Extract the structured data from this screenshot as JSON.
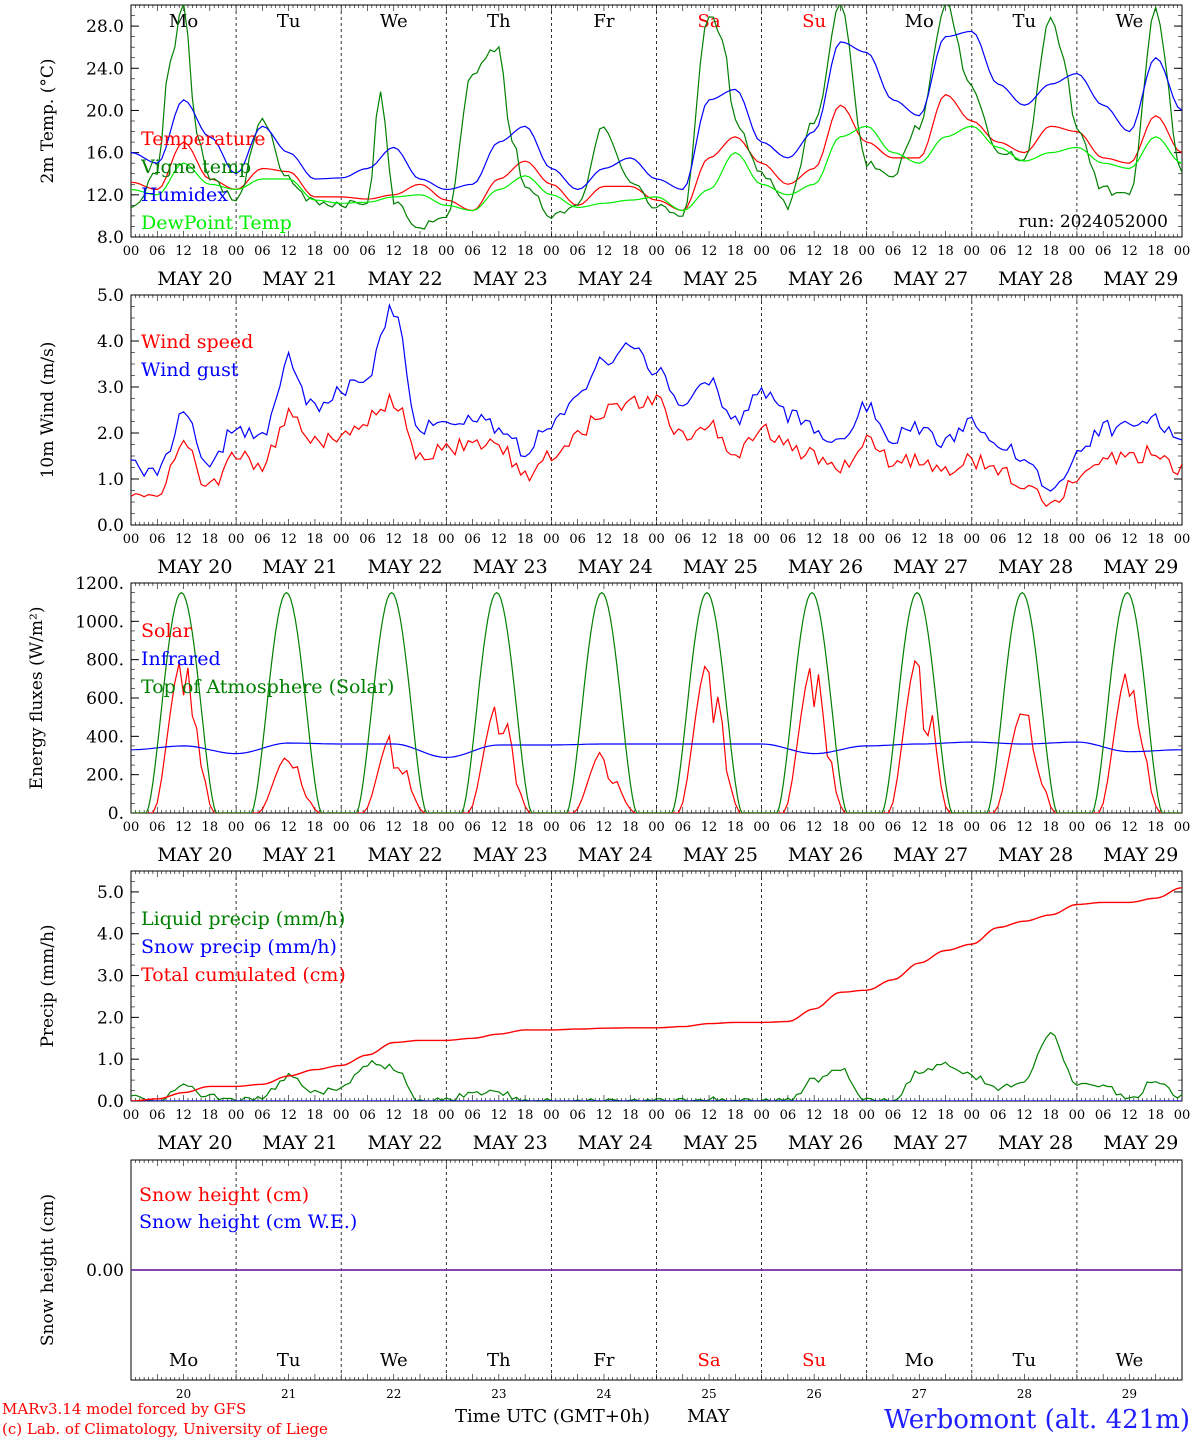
{
  "days": [
    "Mo",
    "Tu",
    "We",
    "Th",
    "Fr",
    "Sa",
    "Su",
    "Mo",
    "Tu",
    "We"
  ],
  "weekend_days": [
    5,
    6
  ],
  "dates": [
    "MAY 20",
    "MAY 21",
    "MAY 22",
    "MAY 23",
    "MAY 24",
    "MAY 25",
    "MAY 26",
    "MAY 27",
    "MAY 28",
    "MAY 29"
  ],
  "date_nums": [
    "20",
    "21",
    "22",
    "23",
    "24",
    "25",
    "26",
    "27",
    "28",
    "29"
  ],
  "hour_labels": [
    "00",
    "06",
    "12",
    "18"
  ],
  "last_hour_label": "00",
  "colors": {
    "red": "#ff0000",
    "green": "#008000",
    "blue": "#0000ff",
    "lightgreen": "#00ee00",
    "purple": "#7030a0",
    "weekend": "#ff0000",
    "site": "#2020ff"
  },
  "footer": {
    "left1": "MARv3.14 model forced by GFS",
    "left2": "(c) Lab. of Climatology, University of Liege",
    "center": "Time UTC (GMT+0h)",
    "month": "MAY",
    "site": "Werbomont (alt. 421m)"
  },
  "chart_data": [
    {
      "type": "line",
      "ylabel": "2m Temp. (°C)",
      "ylim": [
        8,
        30
      ],
      "yticks": [
        "8.0",
        "12.0",
        "16.0",
        "20.0",
        "24.0",
        "28.0"
      ],
      "ytick_values": [
        8,
        12,
        16,
        20,
        24,
        28
      ],
      "annotation": "run: 2024052000",
      "x_unit": "hours since 2024-05-20 00 UTC",
      "series": [
        {
          "name": "Temperature",
          "color": "red",
          "x": [
            0,
            6,
            12,
            18,
            24,
            30,
            36,
            42,
            48,
            54,
            60,
            66,
            72,
            78,
            84,
            90,
            96,
            102,
            108,
            114,
            120,
            126,
            132,
            138,
            144,
            150,
            156,
            162,
            168,
            174,
            180,
            186,
            192,
            198,
            204,
            210,
            216,
            222,
            228,
            234,
            240
          ],
          "y": [
            13.2,
            12.5,
            17.0,
            13.5,
            12.5,
            14.5,
            14.2,
            11.8,
            11.8,
            11.6,
            12.0,
            13.0,
            11.5,
            10.5,
            13.5,
            15.2,
            13.0,
            11.0,
            12.8,
            12.8,
            11.5,
            10.5,
            15.5,
            17.5,
            15.0,
            13.0,
            14.5,
            20.5,
            17.0,
            15.5,
            15.5,
            21.5,
            19.0,
            17.0,
            16.0,
            18.5,
            18.0,
            15.5,
            15.0,
            19.5,
            16.0
          ]
        },
        {
          "name": "Vigne temp",
          "color": "green",
          "x": [
            0,
            6,
            9,
            12,
            15,
            18,
            24,
            30,
            36,
            42,
            48,
            54,
            57,
            60,
            66,
            72,
            78,
            84,
            87,
            90,
            96,
            102,
            108,
            114,
            120,
            126,
            132,
            135,
            138,
            144,
            150,
            156,
            162,
            168,
            174,
            180,
            186,
            192,
            198,
            204,
            210,
            213,
            216,
            222,
            228,
            234,
            240
          ],
          "y": [
            10.5,
            14.0,
            25.0,
            30.0,
            18.0,
            13.5,
            11.5,
            19.0,
            13.5,
            11.2,
            11.0,
            11.5,
            21.5,
            11.5,
            9.0,
            10.0,
            23.5,
            26.0,
            17.0,
            13.0,
            10.0,
            11.0,
            18.5,
            13.0,
            11.0,
            10.0,
            29.0,
            27.0,
            19.0,
            14.0,
            11.0,
            19.0,
            30.0,
            15.0,
            14.0,
            18.5,
            30.0,
            22.0,
            16.0,
            15.5,
            28.5,
            25.0,
            18.0,
            12.5,
            11.8,
            29.5,
            14.0
          ]
        },
        {
          "name": "Humidex",
          "color": "blue",
          "x": [
            0,
            6,
            12,
            18,
            24,
            30,
            36,
            42,
            48,
            54,
            60,
            66,
            72,
            78,
            84,
            90,
            96,
            102,
            108,
            114,
            120,
            126,
            132,
            138,
            144,
            150,
            156,
            162,
            168,
            174,
            180,
            186,
            192,
            198,
            204,
            210,
            216,
            222,
            228,
            234,
            240
          ],
          "y": [
            16.0,
            15.0,
            21.0,
            17.5,
            14.0,
            18.5,
            16.0,
            13.5,
            13.6,
            14.5,
            16.5,
            13.5,
            12.5,
            13.0,
            17.0,
            18.5,
            14.5,
            12.5,
            14.5,
            15.5,
            13.5,
            12.5,
            21.0,
            22.0,
            17.0,
            15.5,
            18.0,
            26.5,
            25.5,
            21.0,
            19.5,
            27.0,
            27.5,
            22.5,
            20.5,
            22.5,
            23.5,
            20.5,
            18.0,
            25.0,
            20.0
          ]
        },
        {
          "name": "DewPoint Temp",
          "color": "lightgreen",
          "x": [
            0,
            6,
            12,
            18,
            24,
            30,
            36,
            42,
            48,
            54,
            60,
            66,
            72,
            78,
            84,
            90,
            96,
            102,
            108,
            114,
            120,
            126,
            132,
            138,
            144,
            150,
            156,
            162,
            168,
            174,
            180,
            186,
            192,
            198,
            204,
            210,
            216,
            222,
            228,
            234,
            240
          ],
          "y": [
            12.5,
            12.0,
            15.0,
            13.0,
            12.5,
            13.5,
            13.5,
            11.5,
            11.2,
            11.3,
            11.8,
            12.0,
            11.0,
            10.5,
            12.5,
            13.8,
            12.0,
            10.8,
            11.2,
            11.5,
            11.8,
            10.5,
            12.5,
            16.0,
            13.0,
            12.0,
            13.0,
            17.5,
            18.5,
            16.0,
            15.0,
            17.5,
            18.5,
            16.5,
            15.2,
            16.0,
            16.5,
            15.0,
            14.5,
            17.5,
            15.0
          ]
        }
      ]
    },
    {
      "type": "line",
      "ylabel": "10m Wind (m/s)",
      "ylim": [
        0,
        5
      ],
      "yticks": [
        "0.0",
        "1.0",
        "2.0",
        "3.0",
        "4.0",
        "5.0"
      ],
      "ytick_values": [
        0,
        1,
        2,
        3,
        4,
        5
      ],
      "x_unit": "hours since 2024-05-20 00 UTC",
      "series": [
        {
          "name": "Wind speed",
          "color": "red",
          "x": [
            0,
            6,
            12,
            18,
            24,
            30,
            36,
            42,
            48,
            54,
            60,
            66,
            72,
            78,
            84,
            90,
            96,
            102,
            108,
            114,
            120,
            126,
            132,
            138,
            144,
            150,
            156,
            162,
            168,
            174,
            180,
            186,
            192,
            198,
            204,
            210,
            216,
            222,
            228,
            234,
            240
          ],
          "y": [
            0.8,
            0.7,
            1.7,
            0.8,
            1.5,
            1.3,
            2.4,
            1.8,
            1.9,
            2.3,
            2.7,
            1.5,
            1.6,
            1.8,
            1.7,
            1.1,
            1.5,
            2.0,
            2.5,
            2.7,
            2.7,
            1.9,
            2.2,
            1.6,
            2.1,
            1.7,
            1.5,
            1.3,
            1.8,
            1.4,
            1.4,
            1.2,
            1.4,
            1.2,
            0.9,
            0.4,
            1.0,
            1.5,
            1.4,
            1.6,
            1.2
          ]
        },
        {
          "name": "Wind gust",
          "color": "blue",
          "x": [
            0,
            6,
            12,
            18,
            24,
            30,
            36,
            42,
            48,
            54,
            60,
            66,
            72,
            78,
            84,
            90,
            96,
            102,
            108,
            114,
            120,
            126,
            132,
            138,
            144,
            150,
            156,
            162,
            168,
            174,
            180,
            186,
            192,
            198,
            204,
            210,
            216,
            222,
            228,
            234,
            240
          ],
          "y": [
            1.3,
            1.1,
            2.4,
            1.3,
            2.1,
            1.9,
            3.6,
            2.5,
            2.9,
            3.3,
            4.7,
            2.1,
            2.3,
            2.3,
            2.1,
            1.6,
            2.2,
            2.8,
            3.6,
            3.8,
            3.4,
            2.6,
            3.1,
            2.3,
            2.9,
            2.4,
            2.1,
            1.8,
            2.6,
            1.9,
            2.1,
            1.8,
            2.2,
            1.7,
            1.5,
            0.6,
            1.5,
            2.1,
            2.1,
            2.3,
            1.8
          ]
        }
      ]
    },
    {
      "type": "line",
      "ylabel": "Energy fluxes (W/m²)",
      "ylim": [
        0,
        1200
      ],
      "yticks": [
        "0.",
        "200.",
        "400.",
        "600.",
        "800.",
        "1000.",
        "1200."
      ],
      "ytick_values": [
        0,
        200,
        400,
        600,
        800,
        1000,
        1200
      ],
      "x_unit": "hours since 2024-05-20 00 UTC",
      "series": [
        {
          "name": "Solar",
          "color": "red",
          "daily_peaks": [
            820,
            300,
            420,
            580,
            330,
            800,
            790,
            830,
            540,
            760
          ]
        },
        {
          "name": "Infrared",
          "color": "blue",
          "x": [
            0,
            12,
            24,
            36,
            48,
            60,
            72,
            84,
            96,
            108,
            120,
            132,
            144,
            156,
            168,
            180,
            192,
            204,
            216,
            228,
            240
          ],
          "y": [
            330,
            350,
            310,
            365,
            360,
            360,
            290,
            355,
            355,
            360,
            360,
            360,
            360,
            310,
            350,
            360,
            370,
            360,
            370,
            320,
            330
          ]
        },
        {
          "name": "Top of Atmosphere (Solar)",
          "color": "green",
          "daily_peak": 1150
        }
      ]
    },
    {
      "type": "line",
      "ylabel": "Precip (mm/h)",
      "ylim": [
        0,
        5.5
      ],
      "yticks": [
        "0.0",
        "1.0",
        "2.0",
        "3.0",
        "4.0",
        "5.0"
      ],
      "ytick_values": [
        0,
        1,
        2,
        3,
        4,
        5
      ],
      "x_unit": "hours since 2024-05-20 00 UTC",
      "series": [
        {
          "name": "Liquid precip (mm/h)",
          "color": "green",
          "x": [
            0,
            6,
            12,
            18,
            24,
            30,
            36,
            42,
            48,
            54,
            60,
            66,
            72,
            78,
            84,
            90,
            96,
            102,
            108,
            114,
            120,
            126,
            132,
            138,
            144,
            150,
            156,
            162,
            168,
            174,
            180,
            186,
            192,
            198,
            204,
            210,
            216,
            222,
            228,
            234,
            240
          ],
          "y": [
            0.2,
            0.0,
            0.35,
            0.1,
            0.0,
            0.1,
            0.6,
            0.2,
            0.3,
            0.9,
            0.8,
            0.0,
            0.0,
            0.2,
            0.2,
            0.0,
            0.0,
            0.0,
            0.0,
            0.0,
            0.0,
            0.0,
            0.05,
            0.05,
            0.0,
            0.0,
            0.5,
            0.8,
            0.0,
            0.0,
            0.7,
            0.9,
            0.6,
            0.3,
            0.5,
            1.6,
            0.4,
            0.4,
            0.0,
            0.5,
            0.1
          ]
        },
        {
          "name": "Snow precip (mm/h)",
          "color": "blue",
          "x": [
            0,
            240
          ],
          "y": [
            0,
            0
          ]
        },
        {
          "name": "Total cumulated (cm)",
          "color": "red",
          "x": [
            0,
            6,
            12,
            18,
            24,
            30,
            36,
            42,
            48,
            54,
            60,
            66,
            72,
            78,
            84,
            90,
            96,
            102,
            108,
            114,
            120,
            126,
            132,
            138,
            144,
            150,
            156,
            162,
            168,
            174,
            180,
            186,
            192,
            198,
            204,
            210,
            216,
            222,
            228,
            234,
            240
          ],
          "y": [
            0.0,
            0.05,
            0.2,
            0.35,
            0.35,
            0.4,
            0.6,
            0.75,
            0.85,
            1.1,
            1.4,
            1.45,
            1.45,
            1.5,
            1.6,
            1.7,
            1.7,
            1.72,
            1.74,
            1.75,
            1.75,
            1.78,
            1.85,
            1.88,
            1.88,
            1.9,
            2.2,
            2.6,
            2.65,
            2.9,
            3.3,
            3.6,
            3.75,
            4.15,
            4.3,
            4.45,
            4.7,
            4.75,
            4.75,
            4.85,
            5.1
          ]
        }
      ]
    },
    {
      "type": "line",
      "ylabel": "Snow height (cm)",
      "ylim": [
        -1,
        1
      ],
      "yticks": [
        "0.00"
      ],
      "ytick_values": [
        0
      ],
      "x_unit": "hours since 2024-05-20 00 UTC",
      "series": [
        {
          "name": "Snow height (cm)",
          "color": "red",
          "x": [
            0,
            240
          ],
          "y": [
            0,
            0
          ]
        },
        {
          "name": "Snow height (cm W.E.)",
          "color": "blue",
          "x": [
            0,
            240
          ],
          "y": [
            0,
            0
          ]
        }
      ]
    }
  ]
}
